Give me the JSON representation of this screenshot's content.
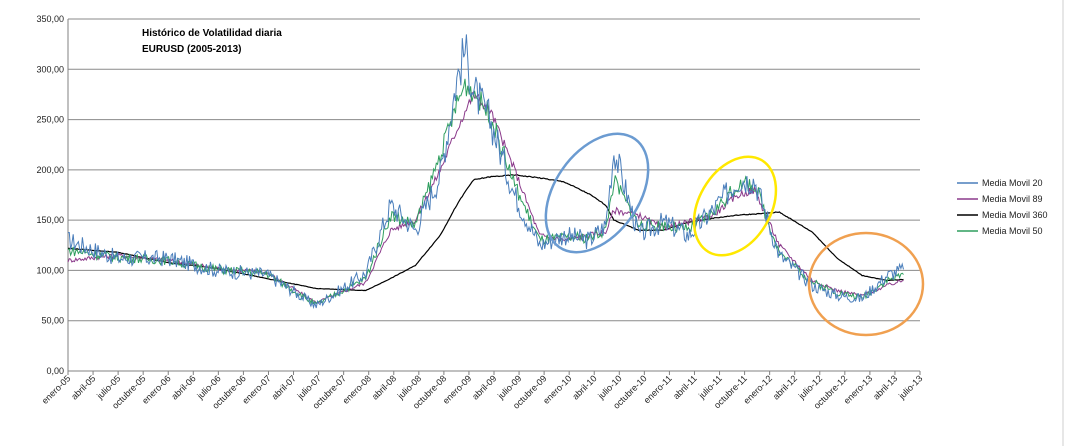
{
  "chart_data": {
    "type": "line",
    "title": "Histórico de Volatilidad diaria",
    "subtitle": "EURUSD  (2005-2013)",
    "xlabel": "",
    "ylabel": "",
    "ylim": [
      0,
      350
    ],
    "grid": true,
    "legend_position": "right",
    "y_ticks": [
      "0,00",
      "50,00",
      "100,00",
      "150,00",
      "200,00",
      "250,00",
      "300,00",
      "350,00"
    ],
    "x_tick_labels": [
      "enero-05",
      "abril-05",
      "julio-05",
      "octubre-05",
      "enero-06",
      "abril-06",
      "julio-06",
      "octubre-06",
      "enero-07",
      "abril-07",
      "julio-07",
      "octubre-07",
      "enero-08",
      "abril-08",
      "julio-08",
      "octubre-08",
      "enero-09",
      "abril-09",
      "julio-09",
      "octubre-09",
      "enero-10",
      "abril-10",
      "julio-10",
      "octubre-10",
      "enero-11",
      "abril-11",
      "julio-11",
      "octubre-11",
      "enero-12",
      "abril-12",
      "julio-12",
      "octubre-12",
      "enero-13",
      "abril-13",
      "julio-13"
    ],
    "x": [
      "2005-01",
      "2005-07",
      "2006-01",
      "2006-07",
      "2007-01",
      "2007-07",
      "2008-01",
      "2008-04",
      "2008-07",
      "2008-10",
      "2008-12",
      "2009-01",
      "2009-02",
      "2009-04",
      "2009-07",
      "2009-10",
      "2010-01",
      "2010-04",
      "2010-06",
      "2010-07",
      "2010-10",
      "2011-01",
      "2011-04",
      "2011-07",
      "2011-10",
      "2011-12",
      "2012-03",
      "2012-07",
      "2012-10",
      "2013-01",
      "2013-04",
      "2013-06"
    ],
    "series": [
      {
        "name": "Media Movil 20",
        "color": "#4a7ebb",
        "values": [
          130,
          112,
          112,
          100,
          96,
          65,
          97,
          165,
          140,
          195,
          290,
          320,
          280,
          250,
          175,
          125,
          135,
          130,
          145,
          220,
          135,
          148,
          135,
          160,
          190,
          190,
          115,
          85,
          75,
          72,
          95,
          101
        ]
      },
      {
        "name": "Media Movil 89",
        "color": "#8b3a8b",
        "values": [
          110,
          115,
          110,
          102,
          98,
          68,
          88,
          140,
          150,
          200,
          240,
          258,
          275,
          260,
          200,
          135,
          130,
          135,
          138,
          160,
          155,
          142,
          148,
          155,
          175,
          180,
          125,
          90,
          80,
          75,
          85,
          90
        ]
      },
      {
        "name": "Media Movil 360",
        "color": "#000000",
        "values": [
          122,
          118,
          108,
          102,
          92,
          82,
          80,
          92,
          105,
          135,
          165,
          178,
          190,
          193,
          195,
          192,
          188,
          176,
          165,
          150,
          140,
          140,
          148,
          152,
          155,
          156,
          158,
          138,
          112,
          95,
          90,
          91
        ]
      },
      {
        "name": "Media Movil 50",
        "color": "#2e9e5e",
        "values": [
          120,
          113,
          110,
          101,
          97,
          66,
          92,
          155,
          145,
          215,
          265,
          285,
          278,
          255,
          185,
          130,
          132,
          133,
          140,
          190,
          145,
          145,
          140,
          158,
          185,
          186,
          118,
          88,
          78,
          73,
          90,
          96
        ]
      }
    ],
    "annotations": [
      {
        "shape": "ellipse",
        "color": "#6b9bd1",
        "around": "2010 peak"
      },
      {
        "shape": "ellipse",
        "color": "#ffe800",
        "around": "late 2011 peak"
      },
      {
        "shape": "ellipse",
        "color": "#f0a050",
        "around": "2013 low"
      }
    ]
  }
}
